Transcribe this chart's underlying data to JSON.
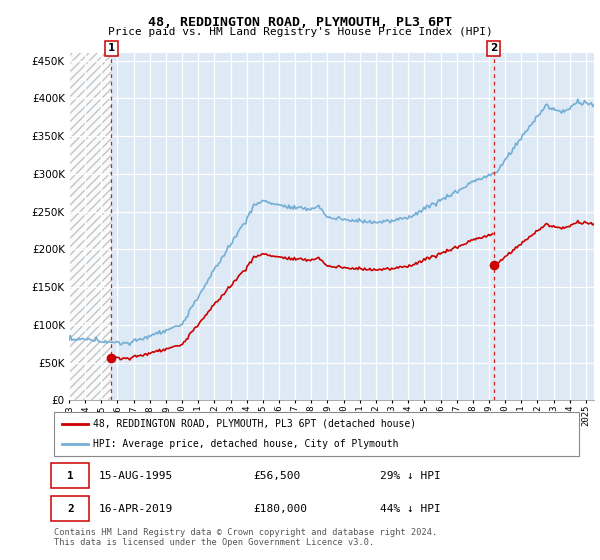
{
  "title": "48, REDDINGTON ROAD, PLYMOUTH, PL3 6PT",
  "subtitle": "Price paid vs. HM Land Registry's House Price Index (HPI)",
  "sale1_year": 1995.625,
  "sale1_price": 56500,
  "sale2_year": 2019.292,
  "sale2_price": 180000,
  "hpi_color": "#74aed4",
  "price_color": "#cc0000",
  "dashed_line_color": "#cc2222",
  "ylim": [
    0,
    460000
  ],
  "yticks": [
    0,
    50000,
    100000,
    150000,
    200000,
    250000,
    300000,
    350000,
    400000,
    450000
  ],
  "xlim_start": 1993,
  "xlim_end": 2025.5,
  "legend1": "48, REDDINGTON ROAD, PLYMOUTH, PL3 6PT (detached house)",
  "legend2": "HPI: Average price, detached house, City of Plymouth",
  "footer": "Contains HM Land Registry data © Crown copyright and database right 2024.\nThis data is licensed under the Open Government Licence v3.0.",
  "bg_color": "#ddeaf5",
  "hatch_bg_color": "#e8e8e8",
  "grid_color": "#ffffff",
  "outer_bg": "#ffffff",
  "anno1_date": "15-AUG-1995",
  "anno1_price": "£56,500",
  "anno1_hpi": "29% ↓ HPI",
  "anno2_date": "16-APR-2019",
  "anno2_price": "£180,000",
  "anno2_hpi": "44% ↓ HPI"
}
